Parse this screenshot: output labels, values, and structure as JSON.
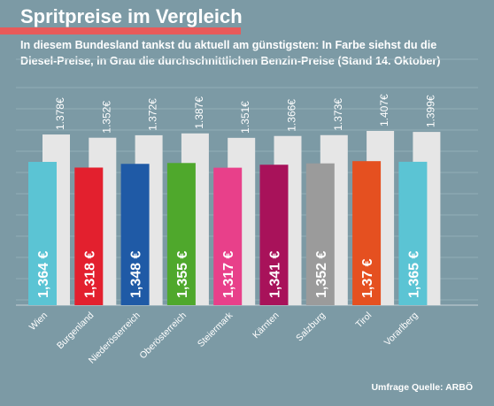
{
  "header": {
    "title": "Spritpreise im Vergleich",
    "subtitle": "In diesem Bundesland tankst du aktuell am günstigsten: In Farbe siehst du die Diesel-Preise, in Grau die durchschnittlichen Benzin-Preise (Stand 14. Oktober)"
  },
  "footer": {
    "source": "Umfrage Quelle: ARBÖ"
  },
  "colors": {
    "background": "#7c9aa5",
    "benzin_bar": "#e6e6e6",
    "title_accent": "#e85a5a"
  },
  "chart_data": {
    "type": "bar",
    "categories": [
      "Wien",
      "Burgenland",
      "Niederösterreich",
      "Oberösterreich",
      "Steiermark",
      "Kärnten",
      "Salzburg",
      "Tirol",
      "Vorarlberg"
    ],
    "series": [
      {
        "values": [
          1.378,
          1.352,
          1.372,
          1.387,
          1.351,
          1.366,
          1.373,
          1.407,
          1.399
        ],
        "labels": [
          "1.378€",
          "1.352€",
          "1.372€",
          "1.387€",
          "1.351€",
          "1.366€",
          "1.373€",
          "1.407€",
          "1.399€"
        ],
        "color": "#e6e6e6"
      },
      {
        "values": [
          1.364,
          1.318,
          1.348,
          1.355,
          1.317,
          1.341,
          1.352,
          1.37,
          1.365
        ],
        "labels": [
          "1,364 €",
          "1,318 €",
          "1,348 €",
          "1,355 €",
          "1,317 €",
          "1,341 €",
          "1,352 €",
          "1,37 €",
          "1,365 €"
        ],
        "colors": [
          "#5bc4d4",
          "#e3202e",
          "#1f5aa6",
          "#4fa82c",
          "#e8408a",
          "#a8125a",
          "#9b9b9b",
          "#e55020",
          "#5bc4d4"
        ]
      }
    ],
    "ylim": [
      0,
      1.407
    ]
  }
}
